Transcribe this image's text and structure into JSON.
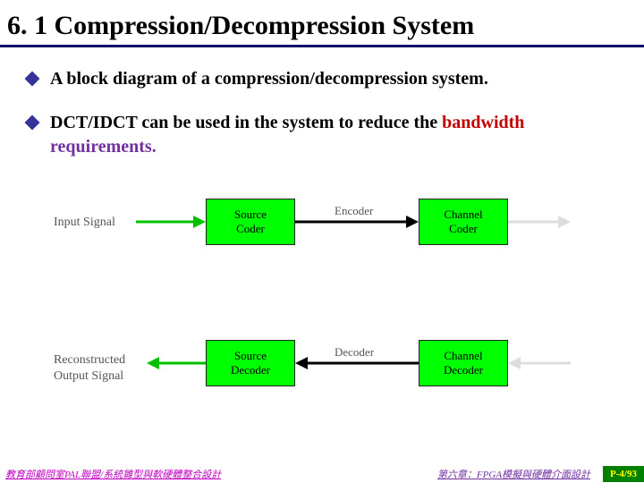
{
  "slide": {
    "title": "6. 1 Compression/Decompression System"
  },
  "bullets": {
    "b1": "A block diagram of a compression/decompression system.",
    "b2_pre": "DCT/IDCT can be used in the system to reduce the ",
    "b2_kw1": "bandwidth",
    "b2_sp": " ",
    "b2_kw2": "requirements."
  },
  "diagram": {
    "input_label": "Input Signal",
    "output_label_l1": "Reconstructed",
    "output_label_l2": "Output Signal",
    "boxes": {
      "src_coder": "Source\nCoder",
      "chan_coder": "Channel\nCoder",
      "src_decoder": "Source\nDecoder",
      "chan_decoder": "Channel\nDecoder"
    },
    "arrow_labels": {
      "encoder": "Encoder",
      "decoder": "Decoder"
    },
    "colors": {
      "box_fill": "#00ff00",
      "arrow_green": "#00c000",
      "arrow_black": "#000000",
      "arrow_white": "#dddddd"
    }
  },
  "footer": {
    "left": "教育部顧問室PAL聯盟/系統雛型與軟硬體整合設計",
    "center": "第六章：FPGA模擬與硬體介面設計",
    "right": "P-4/93"
  }
}
